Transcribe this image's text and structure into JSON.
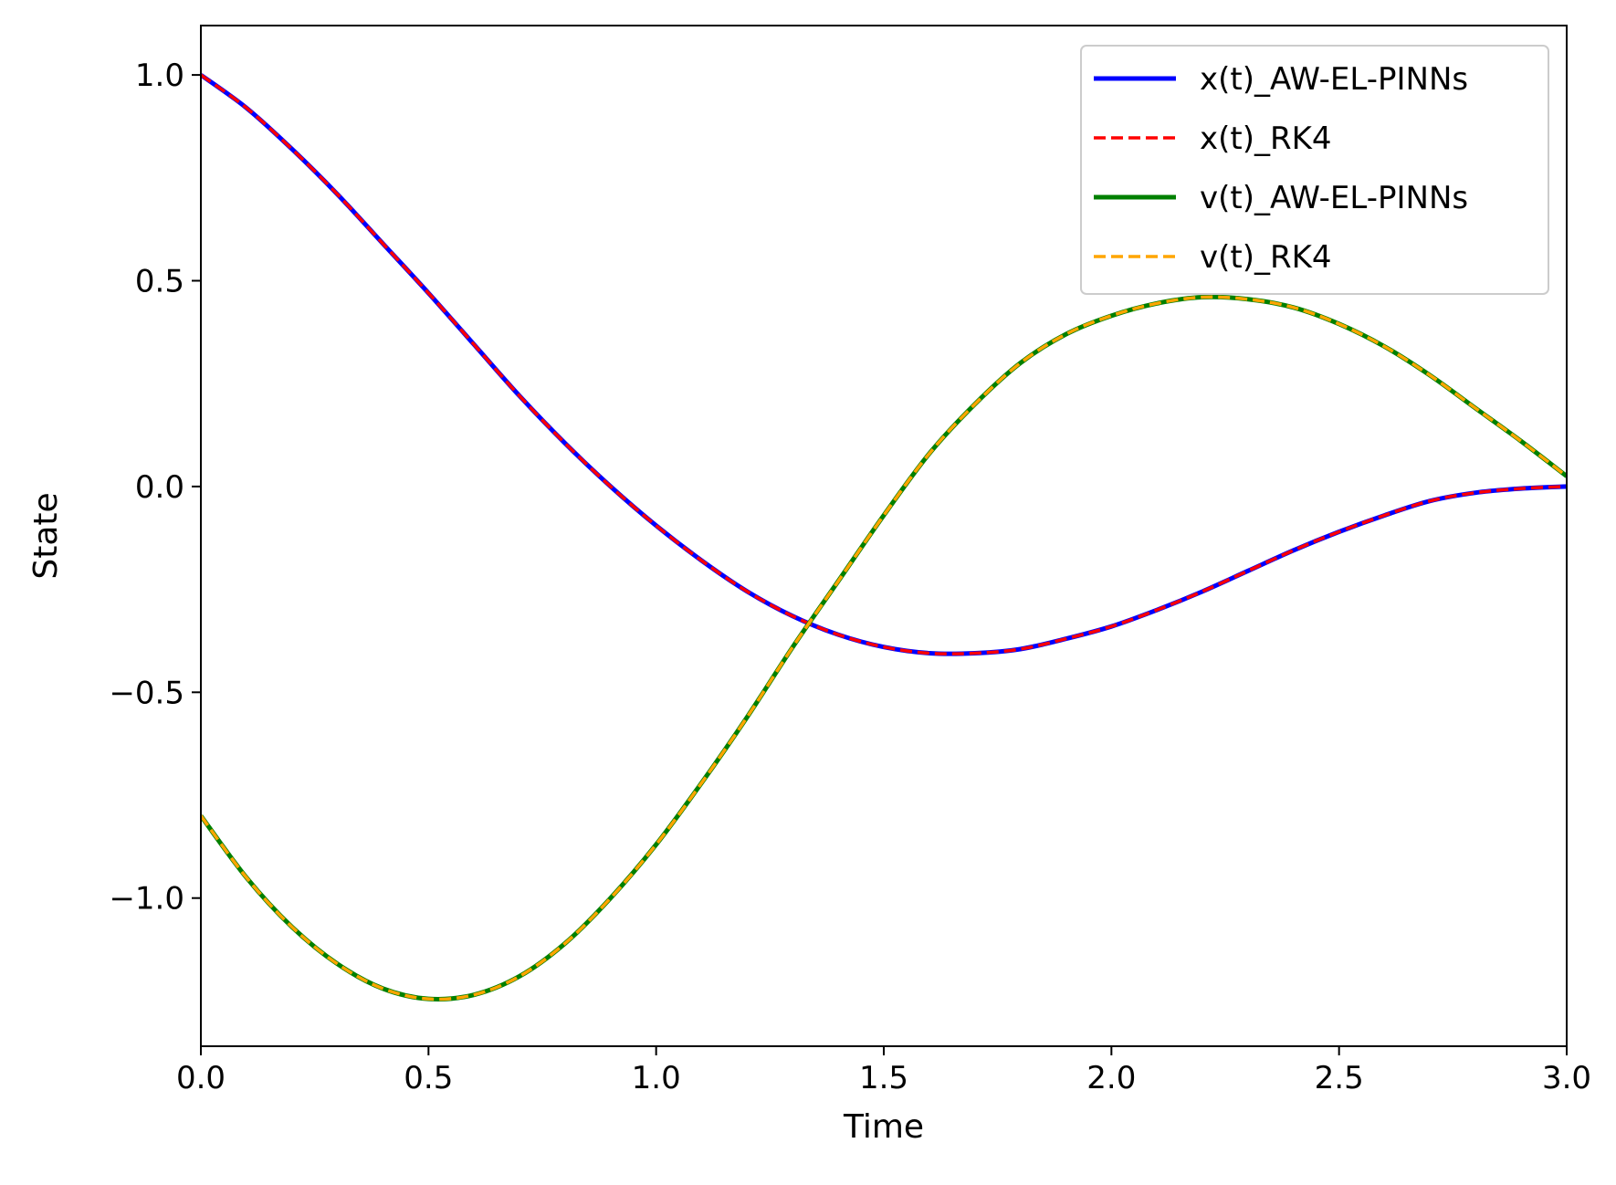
{
  "chart_data": {
    "type": "line",
    "title": "",
    "xlabel": "Time",
    "ylabel": "State",
    "xlim": [
      0.0,
      3.0
    ],
    "ylim": [
      -1.36,
      1.12
    ],
    "xticks": [
      "0.0",
      "0.5",
      "1.0",
      "1.5",
      "2.0",
      "2.5",
      "3.0"
    ],
    "yticks": [
      "1.0",
      "0.5",
      "0.0",
      "−0.5",
      "−1.0"
    ],
    "grid": false,
    "legend_position": "top-right",
    "x": [
      0.0,
      0.1,
      0.2,
      0.3,
      0.4,
      0.5,
      0.6,
      0.7,
      0.8,
      0.9,
      1.0,
      1.1,
      1.2,
      1.3,
      1.4,
      1.5,
      1.6,
      1.7,
      1.8,
      1.9,
      2.0,
      2.1,
      2.2,
      2.3,
      2.4,
      2.5,
      2.6,
      2.7,
      2.8,
      2.9,
      3.0
    ],
    "series": [
      {
        "name": "x(t)_AW-EL-PINNs",
        "color": "#0000ff",
        "style": "solid",
        "values": [
          1.0,
          0.92,
          0.82,
          0.71,
          0.59,
          0.47,
          0.345,
          0.22,
          0.105,
          0.0,
          -0.095,
          -0.18,
          -0.255,
          -0.315,
          -0.36,
          -0.39,
          -0.405,
          -0.405,
          -0.395,
          -0.37,
          -0.34,
          -0.3,
          -0.255,
          -0.205,
          -0.155,
          -0.11,
          -0.07,
          -0.035,
          -0.015,
          -0.005,
          0.0
        ]
      },
      {
        "name": "x(t)_RK4",
        "color": "#ff0000",
        "style": "dashed",
        "values": [
          1.0,
          0.92,
          0.82,
          0.71,
          0.59,
          0.47,
          0.345,
          0.22,
          0.105,
          0.0,
          -0.095,
          -0.18,
          -0.255,
          -0.315,
          -0.36,
          -0.39,
          -0.405,
          -0.405,
          -0.395,
          -0.37,
          -0.34,
          -0.3,
          -0.255,
          -0.205,
          -0.155,
          -0.11,
          -0.07,
          -0.035,
          -0.015,
          -0.005,
          0.0
        ]
      },
      {
        "name": "v(t)_AW-EL-PINNs",
        "color": "#008000",
        "style": "solid",
        "values": [
          -0.8,
          -0.95,
          -1.07,
          -1.16,
          -1.22,
          -1.245,
          -1.235,
          -1.19,
          -1.11,
          -1.0,
          -0.87,
          -0.72,
          -0.56,
          -0.39,
          -0.23,
          -0.07,
          0.08,
          0.2,
          0.3,
          0.37,
          0.415,
          0.445,
          0.46,
          0.455,
          0.435,
          0.395,
          0.34,
          0.27,
          0.19,
          0.11,
          0.025
        ]
      },
      {
        "name": "v(t)_RK4",
        "color": "#ffa500",
        "style": "dashed",
        "values": [
          -0.8,
          -0.95,
          -1.07,
          -1.16,
          -1.22,
          -1.245,
          -1.235,
          -1.19,
          -1.11,
          -1.0,
          -0.87,
          -0.72,
          -0.56,
          -0.39,
          -0.23,
          -0.07,
          0.08,
          0.2,
          0.3,
          0.37,
          0.415,
          0.445,
          0.46,
          0.455,
          0.435,
          0.395,
          0.34,
          0.27,
          0.19,
          0.11,
          0.025
        ]
      }
    ]
  }
}
